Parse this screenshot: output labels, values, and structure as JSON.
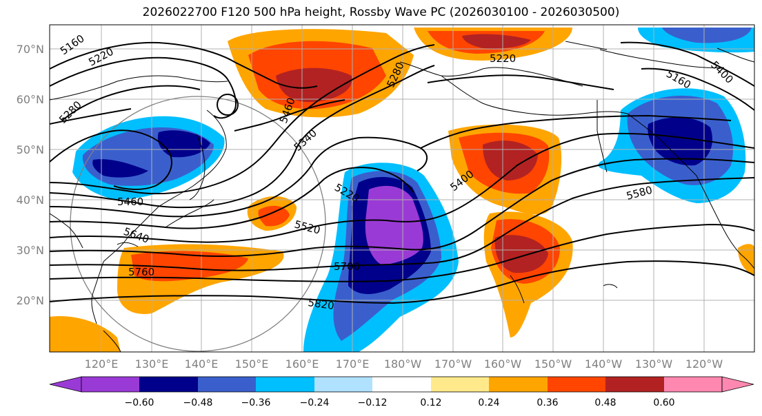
{
  "title": "2026022700 F120 500 hPa height, Rossby Wave PC (2026030100 - 2026030500)",
  "map": {
    "lon_ticks": [
      "120°E",
      "130°E",
      "140°E",
      "150°E",
      "160°E",
      "170°E",
      "180°W",
      "170°W",
      "160°W",
      "150°W",
      "140°W",
      "130°W",
      "120°W"
    ],
    "lat_ticks": [
      "70°N",
      "60°N",
      "50°N",
      "40°N",
      "30°N",
      "20°N"
    ],
    "height_contour_labels": [
      "5160",
      "5220",
      "5280",
      "5460",
      "5340",
      "5280",
      "5220",
      "5400",
      "5580",
      "5520",
      "5640",
      "5760",
      "5700",
      "5820",
      "5220",
      "5160",
      "5460",
      "5400"
    ],
    "colorbar": {
      "tick_labels": [
        "−0.60",
        "−0.48",
        "−0.36",
        "−0.24",
        "−0.12",
        "0.12",
        "0.24",
        "0.36",
        "0.48",
        "0.60"
      ],
      "colors": [
        "#9a3ad6",
        "#00008b",
        "#3a5fcd",
        "#00bfff",
        "#b0e2ff",
        "#ffffff",
        "#ffe98a",
        "#ffa500",
        "#ff4500",
        "#b22222",
        "#ff88b0"
      ]
    }
  }
}
